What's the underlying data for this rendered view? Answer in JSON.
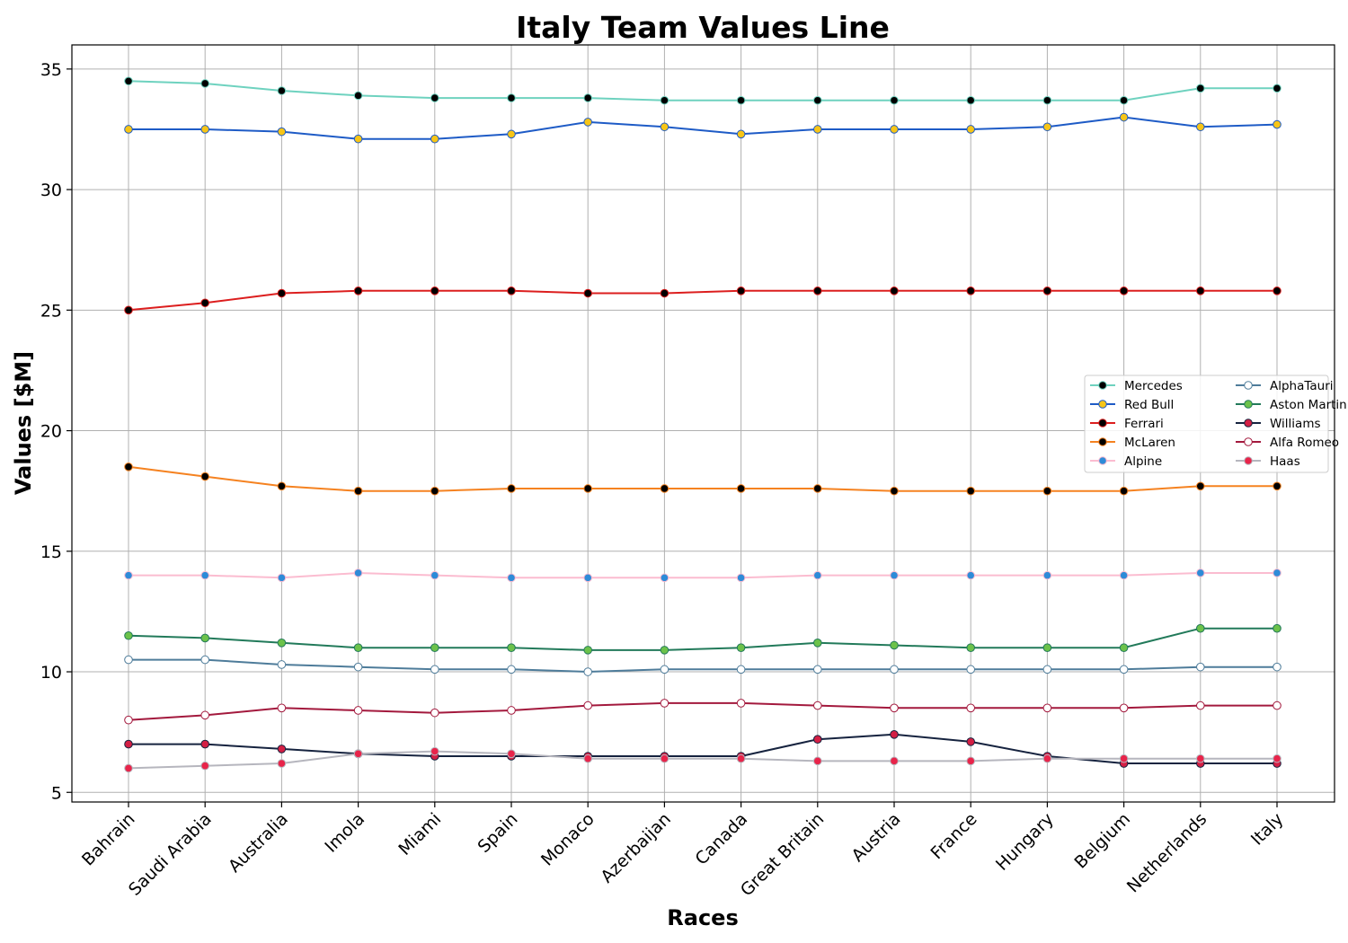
{
  "chart_data": {
    "type": "line",
    "title": "Italy Team Values Line",
    "xlabel": "Races",
    "ylabel": "Values [$M]",
    "ylim": [
      4.6,
      36.0
    ],
    "yticks": [
      5,
      10,
      15,
      20,
      25,
      30,
      35
    ],
    "grid": true,
    "legend_position": "center-right",
    "legend_columns": 2,
    "categories": [
      "Bahrain",
      "Saudi Arabia",
      "Australia",
      "Imola",
      "Miami",
      "Spain",
      "Monaco",
      "Azerbaijan",
      "Canada",
      "Great Britain",
      "Austria",
      "France",
      "Hungary",
      "Belgium",
      "Netherlands",
      "Italy"
    ],
    "series": [
      {
        "name": "Mercedes",
        "color": "#6ed2bf",
        "marker_fill": "#000000",
        "marker_edge": "#6ed2bf",
        "values": [
          34.5,
          34.4,
          34.1,
          33.9,
          33.8,
          33.8,
          33.8,
          33.7,
          33.7,
          33.7,
          33.7,
          33.7,
          33.7,
          33.7,
          34.2,
          34.2
        ]
      },
      {
        "name": "Red Bull",
        "color": "#1e5bc6",
        "marker_fill": "#f7c517",
        "marker_edge": "#1e5bc6",
        "values": [
          32.5,
          32.5,
          32.4,
          32.1,
          32.1,
          32.3,
          32.8,
          32.6,
          32.3,
          32.5,
          32.5,
          32.5,
          32.6,
          33.0,
          32.6,
          32.7
        ]
      },
      {
        "name": "Ferrari",
        "color": "#dc1e1e",
        "marker_fill": "#000000",
        "marker_edge": "#dc1e1e",
        "values": [
          25.0,
          25.3,
          25.7,
          25.8,
          25.8,
          25.8,
          25.7,
          25.7,
          25.8,
          25.8,
          25.8,
          25.8,
          25.8,
          25.8,
          25.8,
          25.8
        ]
      },
      {
        "name": "McLaren",
        "color": "#f58220",
        "marker_fill": "#000000",
        "marker_edge": "#f58220",
        "values": [
          18.5,
          18.1,
          17.7,
          17.5,
          17.5,
          17.6,
          17.6,
          17.6,
          17.6,
          17.6,
          17.5,
          17.5,
          17.5,
          17.5,
          17.7,
          17.7
        ]
      },
      {
        "name": "Alpine",
        "color": "#fbbcd0",
        "marker_fill": "#2e8bd8",
        "marker_edge": "#fbbcd0",
        "values": [
          14.0,
          14.0,
          13.9,
          14.1,
          14.0,
          13.9,
          13.9,
          13.9,
          13.9,
          14.0,
          14.0,
          14.0,
          14.0,
          14.0,
          14.1,
          14.1
        ]
      },
      {
        "name": "AlphaTauri",
        "color": "#4e7c9a",
        "marker_fill": "#ffffff",
        "marker_edge": "#4e7c9a",
        "values": [
          10.5,
          10.5,
          10.3,
          10.2,
          10.1,
          10.1,
          10.0,
          10.1,
          10.1,
          10.1,
          10.1,
          10.1,
          10.1,
          10.1,
          10.2,
          10.2
        ]
      },
      {
        "name": "Aston Martin",
        "color": "#227a5a",
        "marker_fill": "#6cc24a",
        "marker_edge": "#227a5a",
        "values": [
          11.5,
          11.4,
          11.2,
          11.0,
          11.0,
          11.0,
          10.9,
          10.9,
          11.0,
          11.2,
          11.1,
          11.0,
          11.0,
          11.0,
          11.8,
          11.8
        ]
      },
      {
        "name": "Williams",
        "color": "#16233f",
        "marker_fill": "#d41f44",
        "marker_edge": "#16233f",
        "values": [
          7.0,
          7.0,
          6.8,
          6.6,
          6.5,
          6.5,
          6.5,
          6.5,
          6.5,
          7.2,
          7.4,
          7.1,
          6.5,
          6.2,
          6.2,
          6.2
        ]
      },
      {
        "name": "Alfa Romeo",
        "color": "#a3193d",
        "marker_fill": "#ffffff",
        "marker_edge": "#a3193d",
        "values": [
          8.0,
          8.2,
          8.5,
          8.4,
          8.3,
          8.4,
          8.6,
          8.7,
          8.7,
          8.6,
          8.5,
          8.5,
          8.5,
          8.5,
          8.6,
          8.6
        ]
      },
      {
        "name": "Haas",
        "color": "#b6b6be",
        "marker_fill": "#e8244a",
        "marker_edge": "#b6b6be",
        "values": [
          6.0,
          6.1,
          6.2,
          6.6,
          6.7,
          6.6,
          6.4,
          6.4,
          6.4,
          6.3,
          6.3,
          6.3,
          6.4,
          6.4,
          6.4,
          6.4
        ]
      }
    ]
  }
}
